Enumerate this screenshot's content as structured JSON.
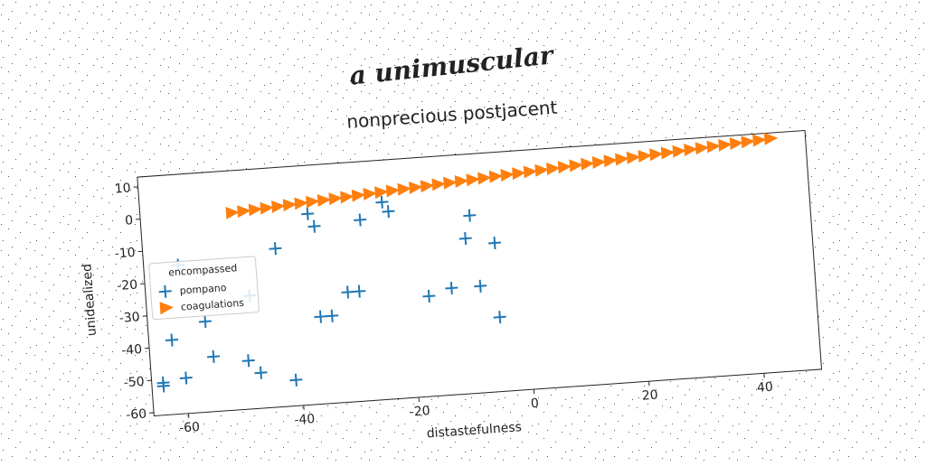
{
  "chart_data": {
    "type": "scatter",
    "suptitle": "a unimuscular",
    "title": "nonprecious postjacent",
    "xlabel": "distastefulness",
    "ylabel": "unidealized",
    "xlim": [
      -66,
      50
    ],
    "xticks": [
      -60,
      -40,
      -20,
      0,
      20,
      40
    ],
    "ylim": [
      -61,
      13
    ],
    "yticks": [
      -60,
      -50,
      -40,
      -30,
      -20,
      -10,
      0,
      10
    ],
    "legend_title": "encompassed",
    "legend_loc": "center left",
    "series": [
      {
        "name": "pompano",
        "color": "#1f77b4",
        "marker": "plus",
        "x": [
          -37,
          -36,
          -43,
          -28,
          -24,
          -23,
          -9,
          -10,
          -5,
          -60,
          -48,
          -56,
          -62,
          -36,
          -34,
          -31,
          -29,
          -17,
          -13,
          -8,
          -5,
          -55,
          -49,
          -47,
          -41,
          -60,
          -64,
          -64
        ],
        "values": [
          -2,
          -6,
          -12,
          -5,
          0,
          -3,
          -6,
          -13,
          -15,
          -15,
          -26,
          -33,
          -38,
          -34,
          -34,
          -27,
          -27,
          -30,
          -28,
          -28,
          -38,
          -44,
          -46,
          -50,
          -53,
          -50,
          -51,
          -52
        ]
      },
      {
        "name": "coagulations",
        "color": "#ff7f0e",
        "marker": "triangle-right",
        "x": [
          -50,
          -48,
          -46,
          -44,
          -42,
          -40,
          -38,
          -36,
          -34,
          -32,
          -30,
          -28,
          -26,
          -24,
          -22,
          -20,
          -18,
          -16,
          -14,
          -12,
          -10,
          -8,
          -6,
          -4,
          -2,
          0,
          2,
          4,
          6,
          8,
          10,
          12,
          14,
          16,
          18,
          20,
          22,
          24,
          26,
          28,
          30,
          32,
          34,
          36,
          38,
          40,
          42,
          44
        ],
        "values": [
          0,
          0.24,
          0.48,
          0.72,
          0.96,
          1.2,
          1.44,
          1.68,
          1.92,
          2.16,
          2.4,
          2.64,
          2.88,
          3.12,
          3.36,
          3.6,
          3.84,
          4.08,
          4.32,
          4.56,
          4.8,
          5.04,
          5.28,
          5.52,
          5.76,
          6,
          6.24,
          6.48,
          6.72,
          6.96,
          7.2,
          7.44,
          7.68,
          7.92,
          8.16,
          8.4,
          8.64,
          8.88,
          9.12,
          9.36,
          9.6,
          9.84,
          10.08,
          10.32,
          10.56,
          10.8,
          11.04,
          11.28
        ]
      }
    ]
  }
}
